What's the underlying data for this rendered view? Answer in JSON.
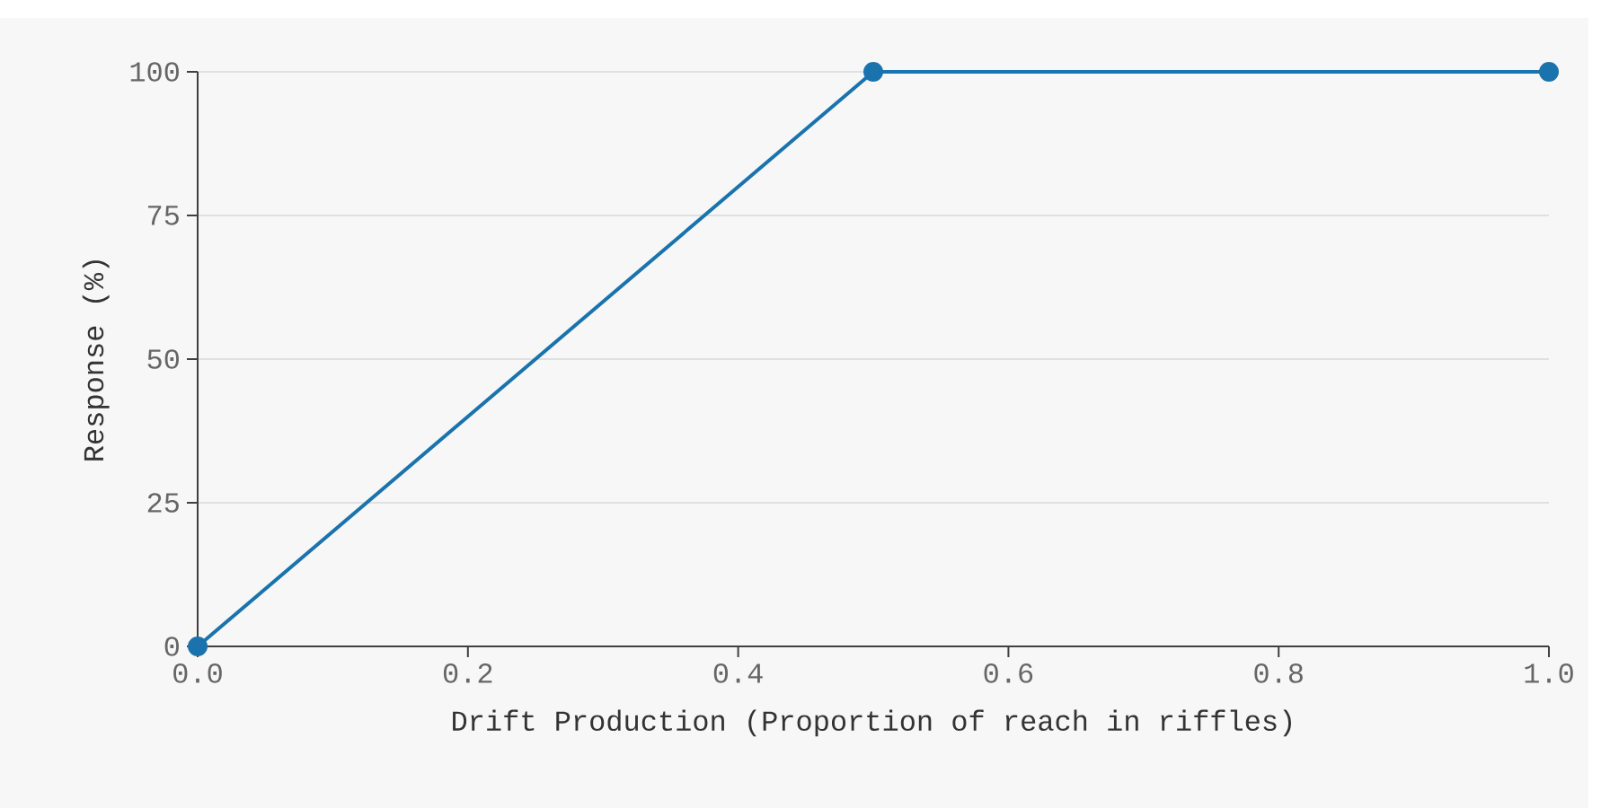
{
  "chart_data": {
    "type": "line",
    "xlabel": "Drift Production (Proportion of reach in riffles)",
    "ylabel": "Response (%)",
    "x": [
      0.0,
      0.5,
      1.0
    ],
    "series": [
      {
        "color": "#1a73ad",
        "values": [
          0,
          100,
          100
        ]
      }
    ],
    "xlim": [
      0,
      1
    ],
    "ylim": [
      0,
      100
    ],
    "xticks": [
      {
        "value": 0,
        "label": "0.0"
      },
      {
        "value": 0.2,
        "label": "0.2"
      },
      {
        "value": 0.4,
        "label": "0.4"
      },
      {
        "value": 0.6,
        "label": "0.6"
      },
      {
        "value": 0.8,
        "label": "0.8"
      },
      {
        "value": 1,
        "label": "1.0"
      }
    ],
    "yticks": [
      0,
      25,
      50,
      75,
      100
    ],
    "grid": "y",
    "marker": "circle",
    "line_style": "solid"
  }
}
